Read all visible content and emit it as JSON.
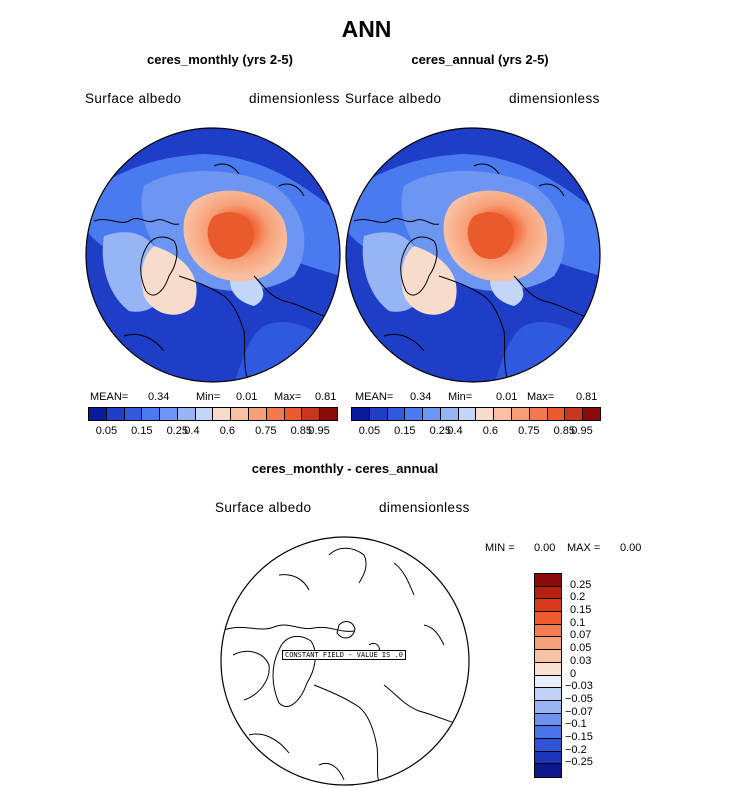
{
  "title": "ANN",
  "panels": [
    {
      "title": "ceres_monthly (yrs 2-5)",
      "variable": "Surface albedo",
      "units": "dimensionless",
      "mean_label": "MEAN=",
      "mean": "0.34",
      "min_label": "Min=",
      "min": "0.01",
      "max_label": "Max=",
      "max": "0.81"
    },
    {
      "title": "ceres_annual (yrs 2-5)",
      "variable": "Surface albedo",
      "units": "dimensionless",
      "mean_label": "MEAN=",
      "mean": "0.34",
      "min_label": "Min=",
      "min": "0.01",
      "max_label": "Max=",
      "max": "0.81"
    }
  ],
  "colorbar": {
    "colors": [
      "#0a1a9c",
      "#1f3ec8",
      "#2f5ae0",
      "#4a7af0",
      "#6d96f2",
      "#97b5f5",
      "#c3d6f7",
      "#f8dccb",
      "#f9bfa0",
      "#f79f77",
      "#f3794f",
      "#e95a2c",
      "#c8361c",
      "#8a0c0a"
    ],
    "ticks": [
      "0.05",
      "0.15",
      "0.25",
      "0.4",
      "0.6",
      "0.75",
      "0.85",
      "0.95"
    ]
  },
  "diff": {
    "title": "ceres_monthly - ceres_annual",
    "variable": "Surface albedo",
    "units": "dimensionless",
    "min_label": "MIN =",
    "min": "0.00",
    "max_label": "MAX =",
    "max": "0.00",
    "note": "CONSTANT FIELD - VALUE IS .0",
    "colors": [
      "#8a0c0a",
      "#b5200f",
      "#d83a1a",
      "#ee5a2e",
      "#f47c52",
      "#f6a07c",
      "#f8c3a4",
      "#f9e0cf",
      "#e6eefa",
      "#bfd2f6",
      "#97b3f2",
      "#6f92ee",
      "#4a73e8",
      "#2f54d8",
      "#1a36b8",
      "#0a1a8c"
    ],
    "ticks": [
      "0.25",
      "0.2",
      "0.15",
      "0.1",
      "0.07",
      "0.05",
      "0.03",
      "0",
      "-0.03",
      "-0.05",
      "-0.07",
      "-0.1",
      "-0.15",
      "-0.2",
      "-0.25"
    ]
  }
}
